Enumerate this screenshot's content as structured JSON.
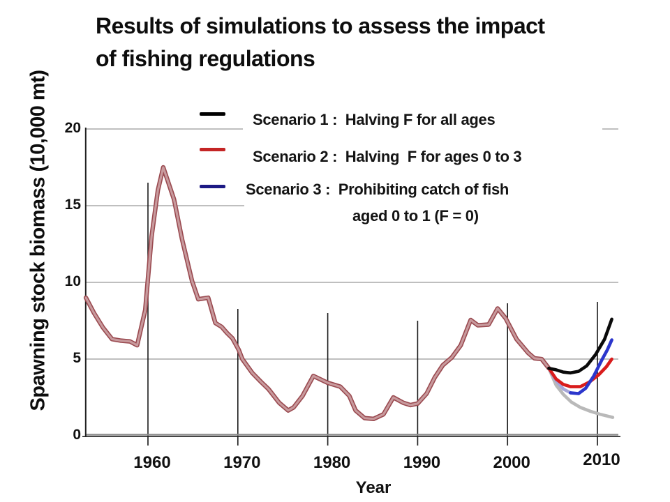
{
  "title": {
    "line1": "Results of simulations to assess the impact",
    "line2": "of fishing regulations"
  },
  "axes": {
    "y_title": "Spawning stock biomass (10,000 mt)",
    "x_title": "Year",
    "y_ticks": [
      0,
      5,
      10,
      15,
      20
    ],
    "x_ticks": [
      1960,
      1970,
      1980,
      1990,
      2000,
      2010
    ],
    "ylim": [
      0,
      20
    ],
    "xlim": [
      1953,
      2012
    ]
  },
  "legend": {
    "items": [
      {
        "label": "Scenario 1 :  Halving F for all ages",
        "color": "#000000"
      },
      {
        "label": "Scenario 2 :  Halving  F for ages 0 to 3",
        "color": "#c42525"
      },
      {
        "label": "Scenario 3 :  Prohibiting catch of fish",
        "label_line2": "aged 0 to 1 (F = 0)",
        "color": "#1d1a84"
      }
    ]
  },
  "chart_data": {
    "type": "line",
    "title": "Results of simulations to assess the impact of fishing regulations",
    "xlabel": "Year",
    "ylabel": "Spawning stock biomass (10,000 mt)",
    "ylim": [
      0,
      20
    ],
    "grid": true,
    "legend_position": "top-right",
    "series": [
      {
        "name": "historical-ssb",
        "color_core": "#c89a9d",
        "color_edge": "#9a4a50",
        "points": [
          [
            1953.1,
            9.0
          ],
          [
            1954,
            8.0
          ],
          [
            1955,
            7.05
          ],
          [
            1956,
            6.3
          ],
          [
            1957,
            6.2
          ],
          [
            1958,
            6.15
          ],
          [
            1958.8,
            5.9
          ],
          [
            1959.7,
            8.2
          ],
          [
            1960.4,
            13.0
          ],
          [
            1961.1,
            16.0
          ],
          [
            1961.7,
            17.5
          ],
          [
            1962.9,
            15.4
          ],
          [
            1963.8,
            12.8
          ],
          [
            1964.9,
            10.1
          ],
          [
            1965.6,
            8.9
          ],
          [
            1966.7,
            9.0
          ],
          [
            1967.5,
            7.35
          ],
          [
            1968.2,
            7.1
          ],
          [
            1968.8,
            6.7
          ],
          [
            1969.4,
            6.35
          ],
          [
            1970.1,
            5.6
          ],
          [
            1970.5,
            5.0
          ],
          [
            1971.6,
            4.1
          ],
          [
            1972.6,
            3.5
          ],
          [
            1973.4,
            3.05
          ],
          [
            1974.6,
            2.15
          ],
          [
            1975.6,
            1.65
          ],
          [
            1976.2,
            1.85
          ],
          [
            1977.2,
            2.6
          ],
          [
            1978.4,
            3.9
          ],
          [
            1980,
            3.45
          ],
          [
            1981.4,
            3.2
          ],
          [
            1982.4,
            2.6
          ],
          [
            1983.1,
            1.65
          ],
          [
            1984.1,
            1.15
          ],
          [
            1985.1,
            1.1
          ],
          [
            1986.2,
            1.4
          ],
          [
            1987.3,
            2.5
          ],
          [
            1988.4,
            2.15
          ],
          [
            1989.2,
            2.0
          ],
          [
            1990,
            2.1
          ],
          [
            1991,
            2.75
          ],
          [
            1991.9,
            3.8
          ],
          [
            1992.8,
            4.6
          ],
          [
            1993.8,
            5.1
          ],
          [
            1994.8,
            5.9
          ],
          [
            1995.9,
            7.55
          ],
          [
            1996.7,
            7.2
          ],
          [
            1997.9,
            7.25
          ],
          [
            1998.9,
            8.3
          ],
          [
            1999.8,
            7.65
          ],
          [
            2001,
            6.3
          ],
          [
            2002.3,
            5.4
          ],
          [
            2003,
            5.05
          ],
          [
            2003.8,
            5.0
          ],
          [
            2004.6,
            4.4
          ]
        ]
      },
      {
        "name": "baseline-grey",
        "color": "#b9b9b9",
        "points": [
          [
            2004.6,
            4.4
          ],
          [
            2005.4,
            3.3
          ],
          [
            2006.2,
            2.7
          ],
          [
            2007.1,
            2.2
          ],
          [
            2008.1,
            1.85
          ],
          [
            2009.2,
            1.6
          ],
          [
            2010.3,
            1.4
          ],
          [
            2011.7,
            1.2
          ]
        ]
      },
      {
        "name": "scenario3-lead-in-lavender",
        "color": "#a6a6d8",
        "points": [
          [
            2004.6,
            4.4
          ],
          [
            2005.4,
            3.6
          ],
          [
            2006.2,
            3.05
          ],
          [
            2007,
            2.8
          ]
        ]
      },
      {
        "name": "scenario2-halving-f-ages-0-3",
        "color": "#d91c1c",
        "points": [
          [
            2004.6,
            4.4
          ],
          [
            2005.4,
            3.7
          ],
          [
            2006.2,
            3.35
          ],
          [
            2007,
            3.2
          ],
          [
            2008.1,
            3.2
          ],
          [
            2009.1,
            3.5
          ],
          [
            2010.1,
            3.95
          ],
          [
            2011,
            4.5
          ],
          [
            2011.6,
            5.0
          ]
        ]
      },
      {
        "name": "scenario3-prohibit-catch-ages-0-1",
        "color": "#2b36cc",
        "points": [
          [
            2007,
            2.8
          ],
          [
            2007.9,
            2.75
          ],
          [
            2008.7,
            3.1
          ],
          [
            2009.6,
            3.9
          ],
          [
            2010.5,
            4.95
          ],
          [
            2011.1,
            5.6
          ],
          [
            2011.6,
            6.25
          ]
        ]
      },
      {
        "name": "scenario1-halving-f-all-ages",
        "color": "#0a0a0a",
        "points": [
          [
            2004.6,
            4.4
          ],
          [
            2005.4,
            4.3
          ],
          [
            2006.2,
            4.15
          ],
          [
            2007,
            4.1
          ],
          [
            2007.9,
            4.2
          ],
          [
            2008.8,
            4.55
          ],
          [
            2009.8,
            5.3
          ],
          [
            2010.8,
            6.3
          ],
          [
            2011.6,
            7.6
          ]
        ]
      }
    ]
  }
}
